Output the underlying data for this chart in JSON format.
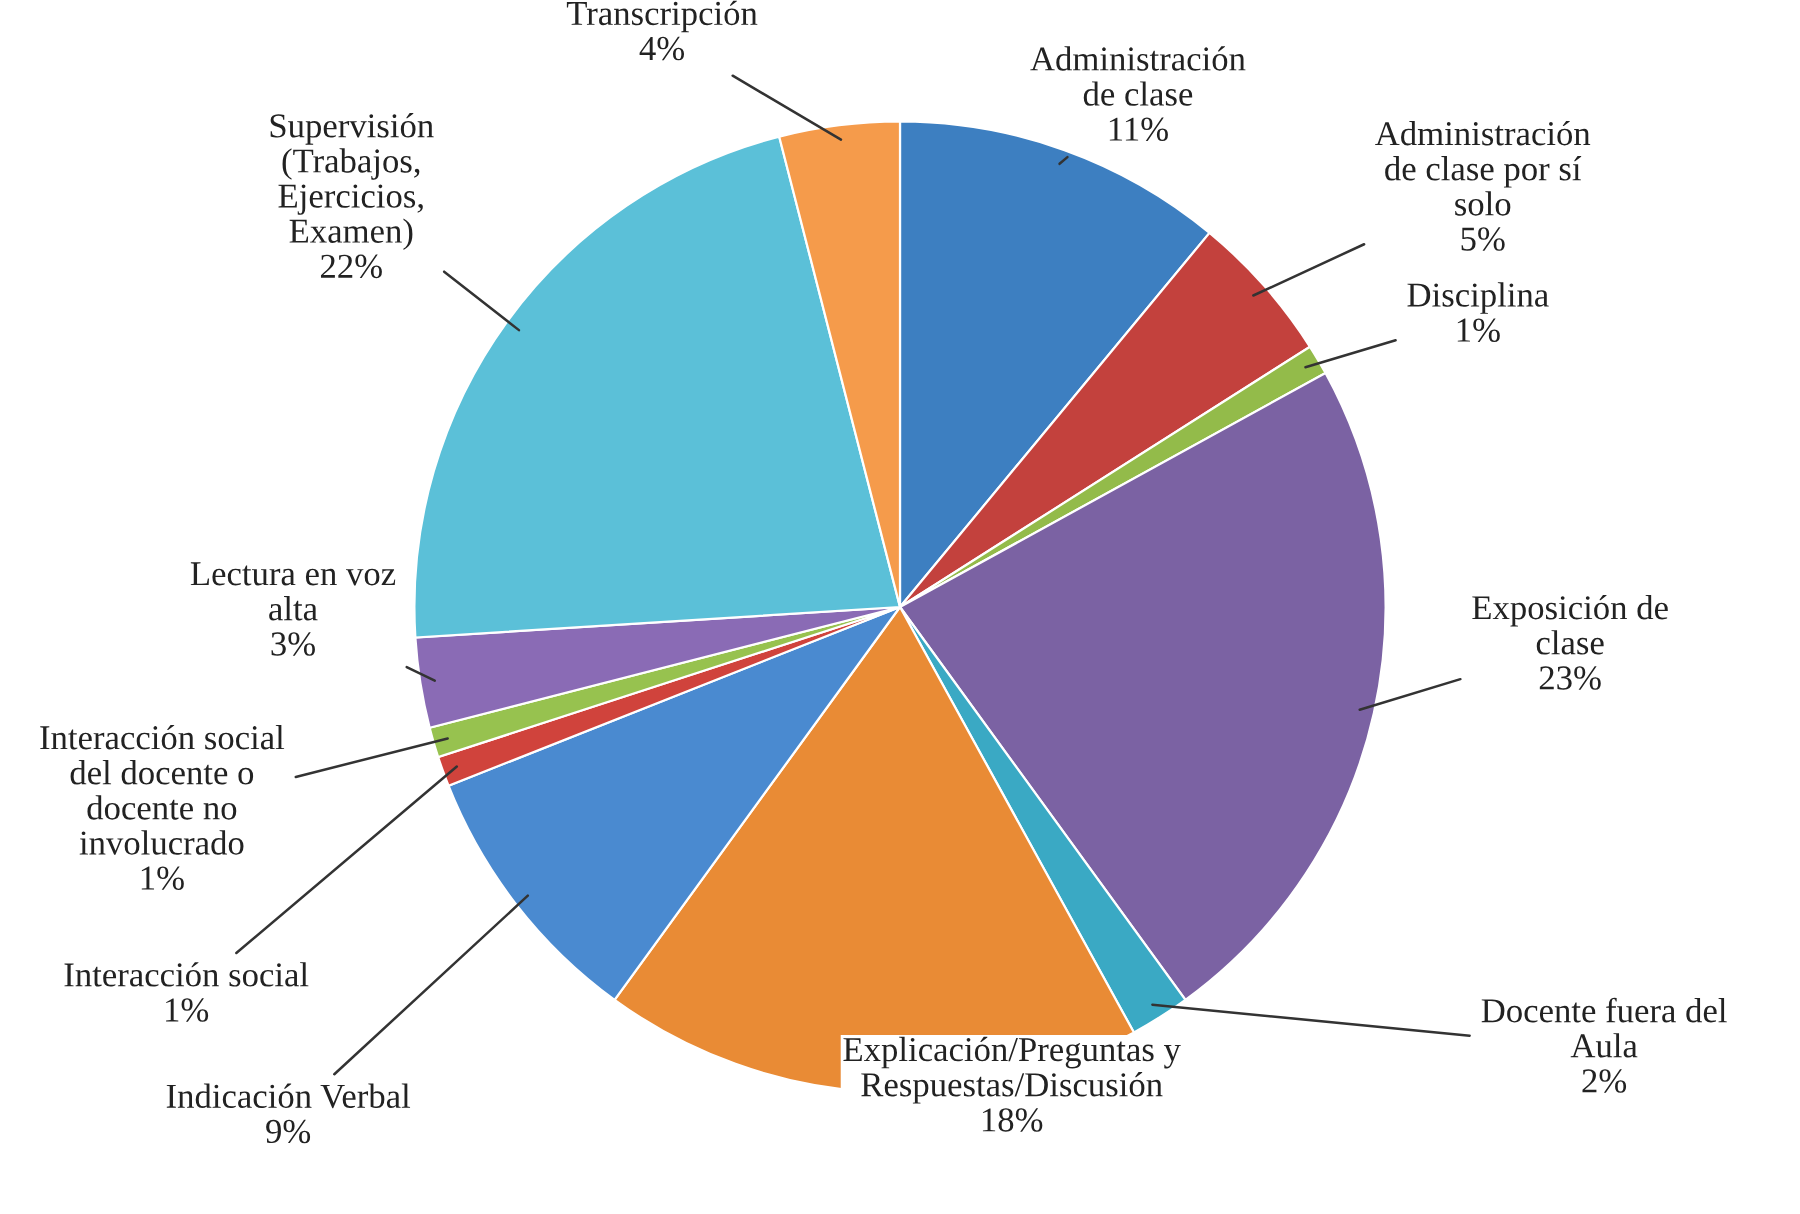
{
  "chart_data": {
    "type": "pie",
    "categories": [
      "Administración\nde clase",
      "Administración\nde clase por sí\nsolo",
      "Disciplina",
      "Exposición de\nclase",
      "Docente fuera del\nAula",
      "Explicación/Preguntas y\nRespuestas/Discusión",
      "Indicación Verbal",
      "Interacción social",
      "Interacción social\ndel docente o\ndocente no\ninvolucrado",
      "Lectura en voz\nalta",
      "Supervisión\n(Trabajos,\nEjercicios,\nExamen)",
      "Transcripción"
    ],
    "values": [
      11,
      5,
      1,
      23,
      2,
      18,
      9,
      1,
      1,
      3,
      22,
      4
    ],
    "colors": [
      "#3d7fc1",
      "#c3413d",
      "#93bb4a",
      "#7b62a3",
      "#3aa9c4",
      "#e98b35",
      "#4a8ad0",
      "#d0433c",
      "#97c24f",
      "#8a6bb5",
      "#5bc0d8",
      "#f59b4b"
    ],
    "value_labels": [
      "11%",
      "5%",
      "1%",
      "23%",
      "2%",
      "18%",
      "9%",
      "1%",
      "1%",
      "3%",
      "22%",
      "4%"
    ]
  }
}
